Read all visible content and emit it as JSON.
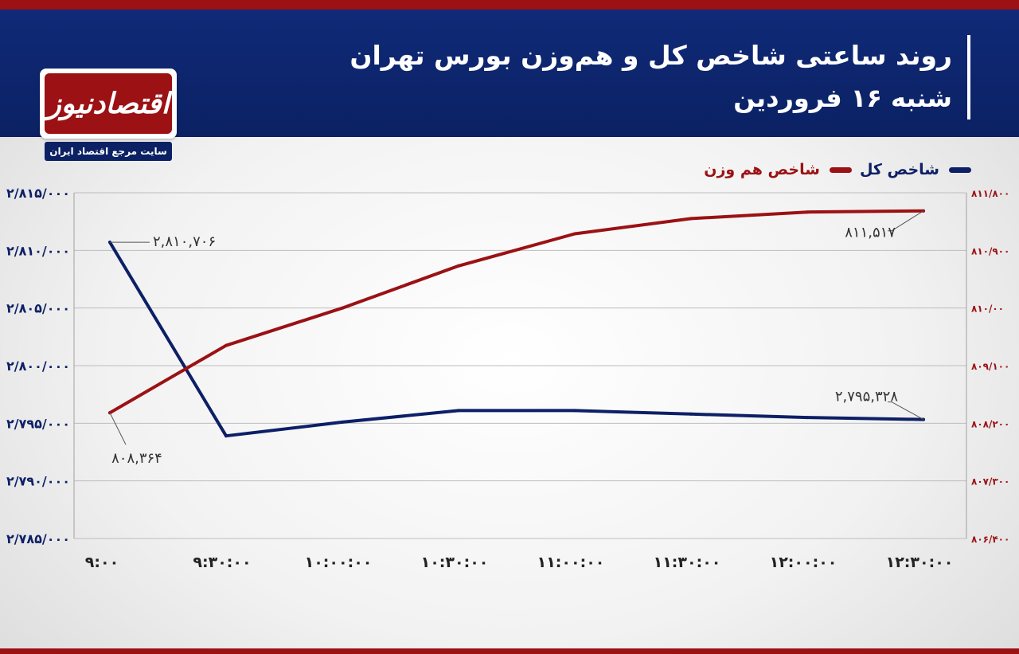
{
  "header": {
    "title": "روند ساعتی شاخص کل و هم‌وزن بورس تهران",
    "subtitle": "شنبه ۱۶ فروردین"
  },
  "logo": {
    "name": "اقتصادنیوز",
    "tagline": "سایت مرجع اقتصاد ایران"
  },
  "colors": {
    "header_bg": "#0b2163",
    "accent_red": "#9b1114",
    "series_total": "#0d1f66",
    "series_equal": "#9b1114"
  },
  "chart_data": {
    "type": "line",
    "title": "روند ساعتی شاخص کل و هم‌وزن بورس تهران",
    "categories": [
      "۹:۰۰",
      "۹:۳۰:۰۰",
      "۱۰:۰۰:۰۰",
      "۱۰:۳۰:۰۰",
      "۱۱:۰۰:۰۰",
      "۱۱:۳۰:۰۰",
      "۱۲:۰۰:۰۰",
      "۱۲:۳۰:۰۰"
    ],
    "legend_position": "top-right",
    "grid": true,
    "series": [
      {
        "name": "شاخص کل",
        "axis": "left",
        "color": "#0d1f66",
        "values": [
          2810706,
          2793900,
          2795100,
          2796100,
          2796100,
          2795800,
          2795500,
          2795328
        ]
      },
      {
        "name": "شاخص هم وزن",
        "axis": "right",
        "color": "#9b1114",
        "values": [
          808364,
          809415,
          809999,
          810658,
          811159,
          811397,
          811499,
          811517
        ]
      }
    ],
    "left_axis": {
      "ylim": [
        2785000,
        2815000
      ],
      "ticks": [
        2815000,
        2810000,
        2805000,
        2800000,
        2795000,
        2790000,
        2785000
      ],
      "tick_labels": [
        "۲/۸۱۵/۰۰۰",
        "۲/۸۱۰/۰۰۰",
        "۲/۸۰۵/۰۰۰",
        "۲/۸۰۰/۰۰۰",
        "۲/۷۹۵/۰۰۰",
        "۲/۷۹۰/۰۰۰",
        "۲/۷۸۵/۰۰۰"
      ]
    },
    "right_axis": {
      "ylim": [
        806400,
        811800
      ],
      "ticks": [
        811800,
        810900,
        810000,
        809100,
        808200,
        807300,
        806400
      ],
      "tick_labels": [
        "۸۱۱/۸۰۰",
        "۸۱۰/۹۰۰",
        "۸۱۰/۰۰",
        "۸۰۹/۱۰۰",
        "۸۰۸/۲۰۰",
        "۸۰۷/۳۰۰",
        "۸۰۶/۴۰۰"
      ]
    },
    "annotations": [
      {
        "series": 0,
        "index": 0,
        "text": "۲,۸۱۰,۷۰۶"
      },
      {
        "series": 0,
        "index": 7,
        "text": "۲,۷۹۵,۳۲۸"
      },
      {
        "series": 1,
        "index": 0,
        "text": "۸۰۸,۳۶۴"
      },
      {
        "series": 1,
        "index": 7,
        "text": "۸۱۱,۵۱۷"
      }
    ]
  }
}
